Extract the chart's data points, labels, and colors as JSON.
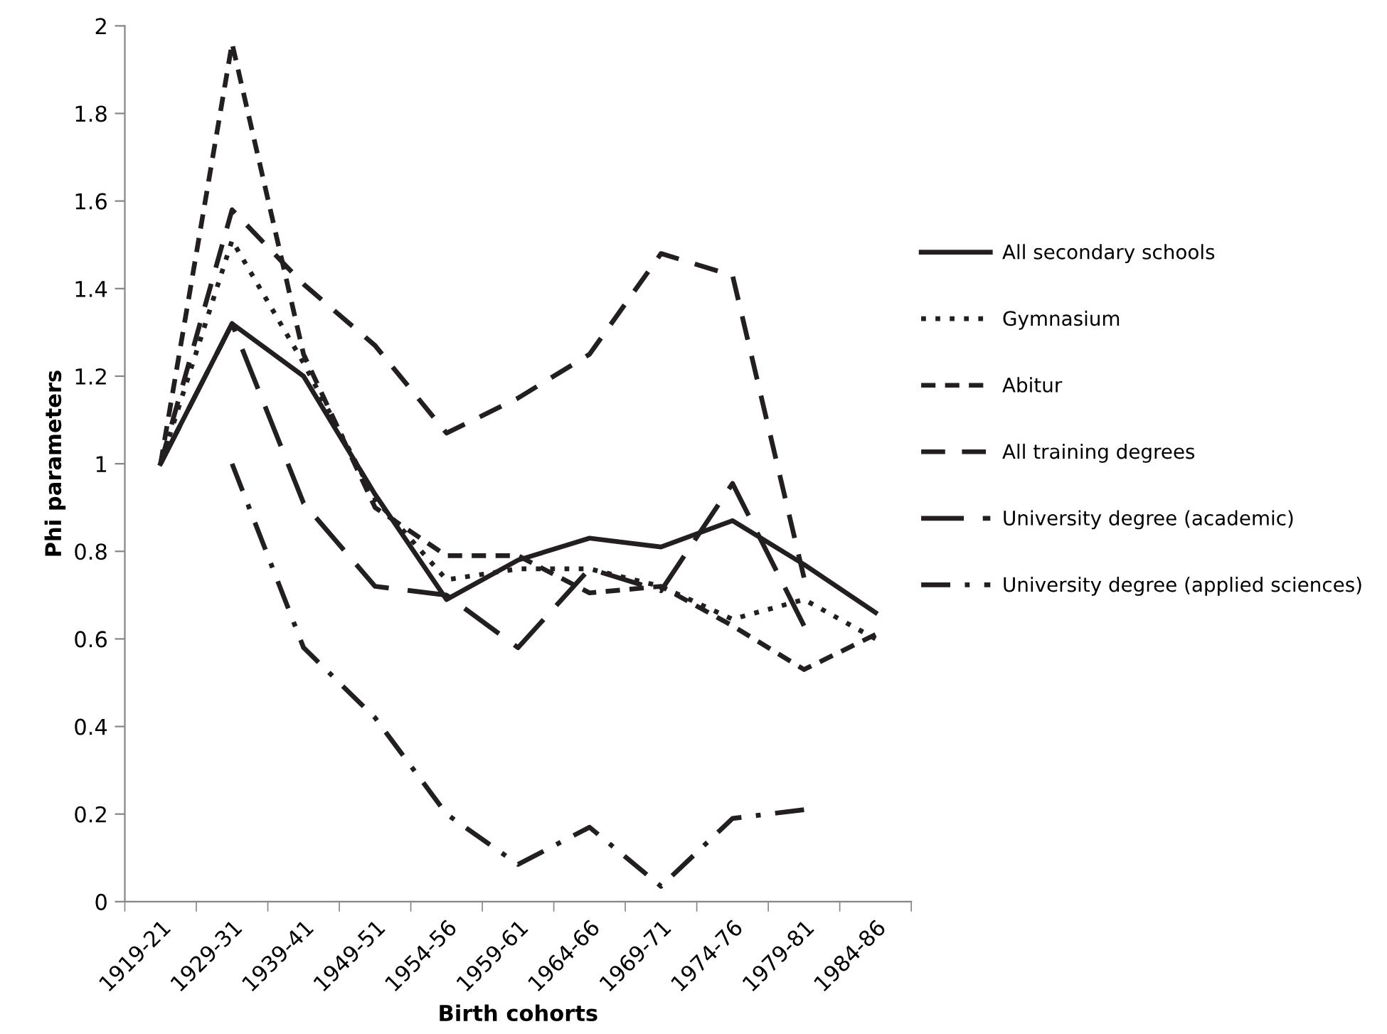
{
  "chart_data": {
    "type": "line",
    "xlabel": "Birth cohorts",
    "ylabel": "Phi parameters",
    "categories": [
      "1919-21",
      "1929-31",
      "1939-41",
      "1949-51",
      "1954-56",
      "1959-61",
      "1964-66",
      "1969-71",
      "1974-76",
      "1979-81",
      "1984-86"
    ],
    "series": [
      {
        "name": "All secondary schools",
        "color": "#231f20",
        "line_style": "solid",
        "values": [
          1.0,
          1.32,
          1.2,
          0.93,
          0.69,
          0.78,
          0.83,
          0.81,
          0.87,
          0.77,
          0.66
        ]
      },
      {
        "name": "Gymnasium",
        "color": "#231f20",
        "line_style": "dotted",
        "values": [
          1.0,
          1.51,
          1.23,
          0.92,
          0.735,
          0.76,
          0.76,
          0.72,
          0.645,
          0.69,
          0.6
        ]
      },
      {
        "name": "Abitur",
        "color": "#231f20",
        "line_style": "dashed",
        "values": [
          1.0,
          1.96,
          1.25,
          0.9,
          0.79,
          0.79,
          0.705,
          0.72,
          0.63,
          0.53,
          0.61
        ]
      },
      {
        "name": "All training degrees",
        "color": "#231f20",
        "line_style": "medium dashed",
        "values": [
          1.0,
          1.58,
          1.41,
          1.27,
          1.07,
          1.15,
          1.25,
          1.48,
          1.43,
          0.74,
          null
        ]
      },
      {
        "name": "University degree (academic)",
        "color": "#231f20",
        "line_style": "long dashed",
        "values": [
          1.0,
          1.32,
          0.91,
          0.72,
          0.7,
          0.58,
          0.76,
          0.71,
          0.955,
          0.63,
          null
        ]
      },
      {
        "name": "University degree (applied sciences)",
        "color": "#231f20",
        "line_style": "dash dot",
        "values": [
          null,
          1.0,
          0.58,
          0.42,
          0.2,
          0.085,
          0.17,
          0.035,
          0.19,
          0.21,
          null
        ]
      }
    ],
    "ylim": [
      0,
      2
    ],
    "yticks": [
      0,
      0.2,
      0.4,
      0.6,
      0.8,
      1,
      1.2,
      1.4,
      1.6,
      1.8,
      2
    ],
    "grid": false,
    "legend": "right",
    "marker": "none"
  }
}
